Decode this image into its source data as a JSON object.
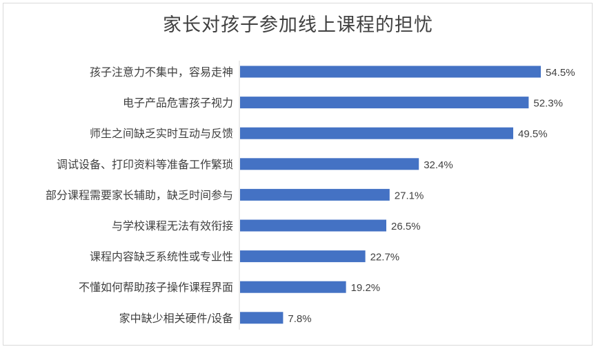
{
  "chart_data": {
    "type": "bar",
    "orientation": "horizontal",
    "title": "家长对孩子参加线上课程的担忧",
    "categories": [
      "孩子注意力不集中，容易走神",
      "电子产品危害孩子视力",
      "师生之间缺乏实时互动与反馈",
      "调试设备、打印资料等准备工作繁琐",
      "部分课程需要家长辅助，缺乏时间参与",
      "与学校课程无法有效衔接",
      "课程内容缺乏系统性或专业性",
      "不懂如何帮助孩子操作课程界面",
      "家中缺少相关硬件/设备"
    ],
    "values": [
      54.5,
      52.3,
      49.5,
      32.4,
      27.1,
      26.5,
      22.7,
      19.2,
      7.8
    ],
    "value_labels": [
      "54.5%",
      "52.3%",
      "49.5%",
      "32.4%",
      "27.1%",
      "26.5%",
      "22.7%",
      "19.2%",
      "7.8%"
    ],
    "unit": "%",
    "xlim": [
      0,
      60
    ],
    "grid": false,
    "legend": "none",
    "bar_color": "#4472c4"
  }
}
